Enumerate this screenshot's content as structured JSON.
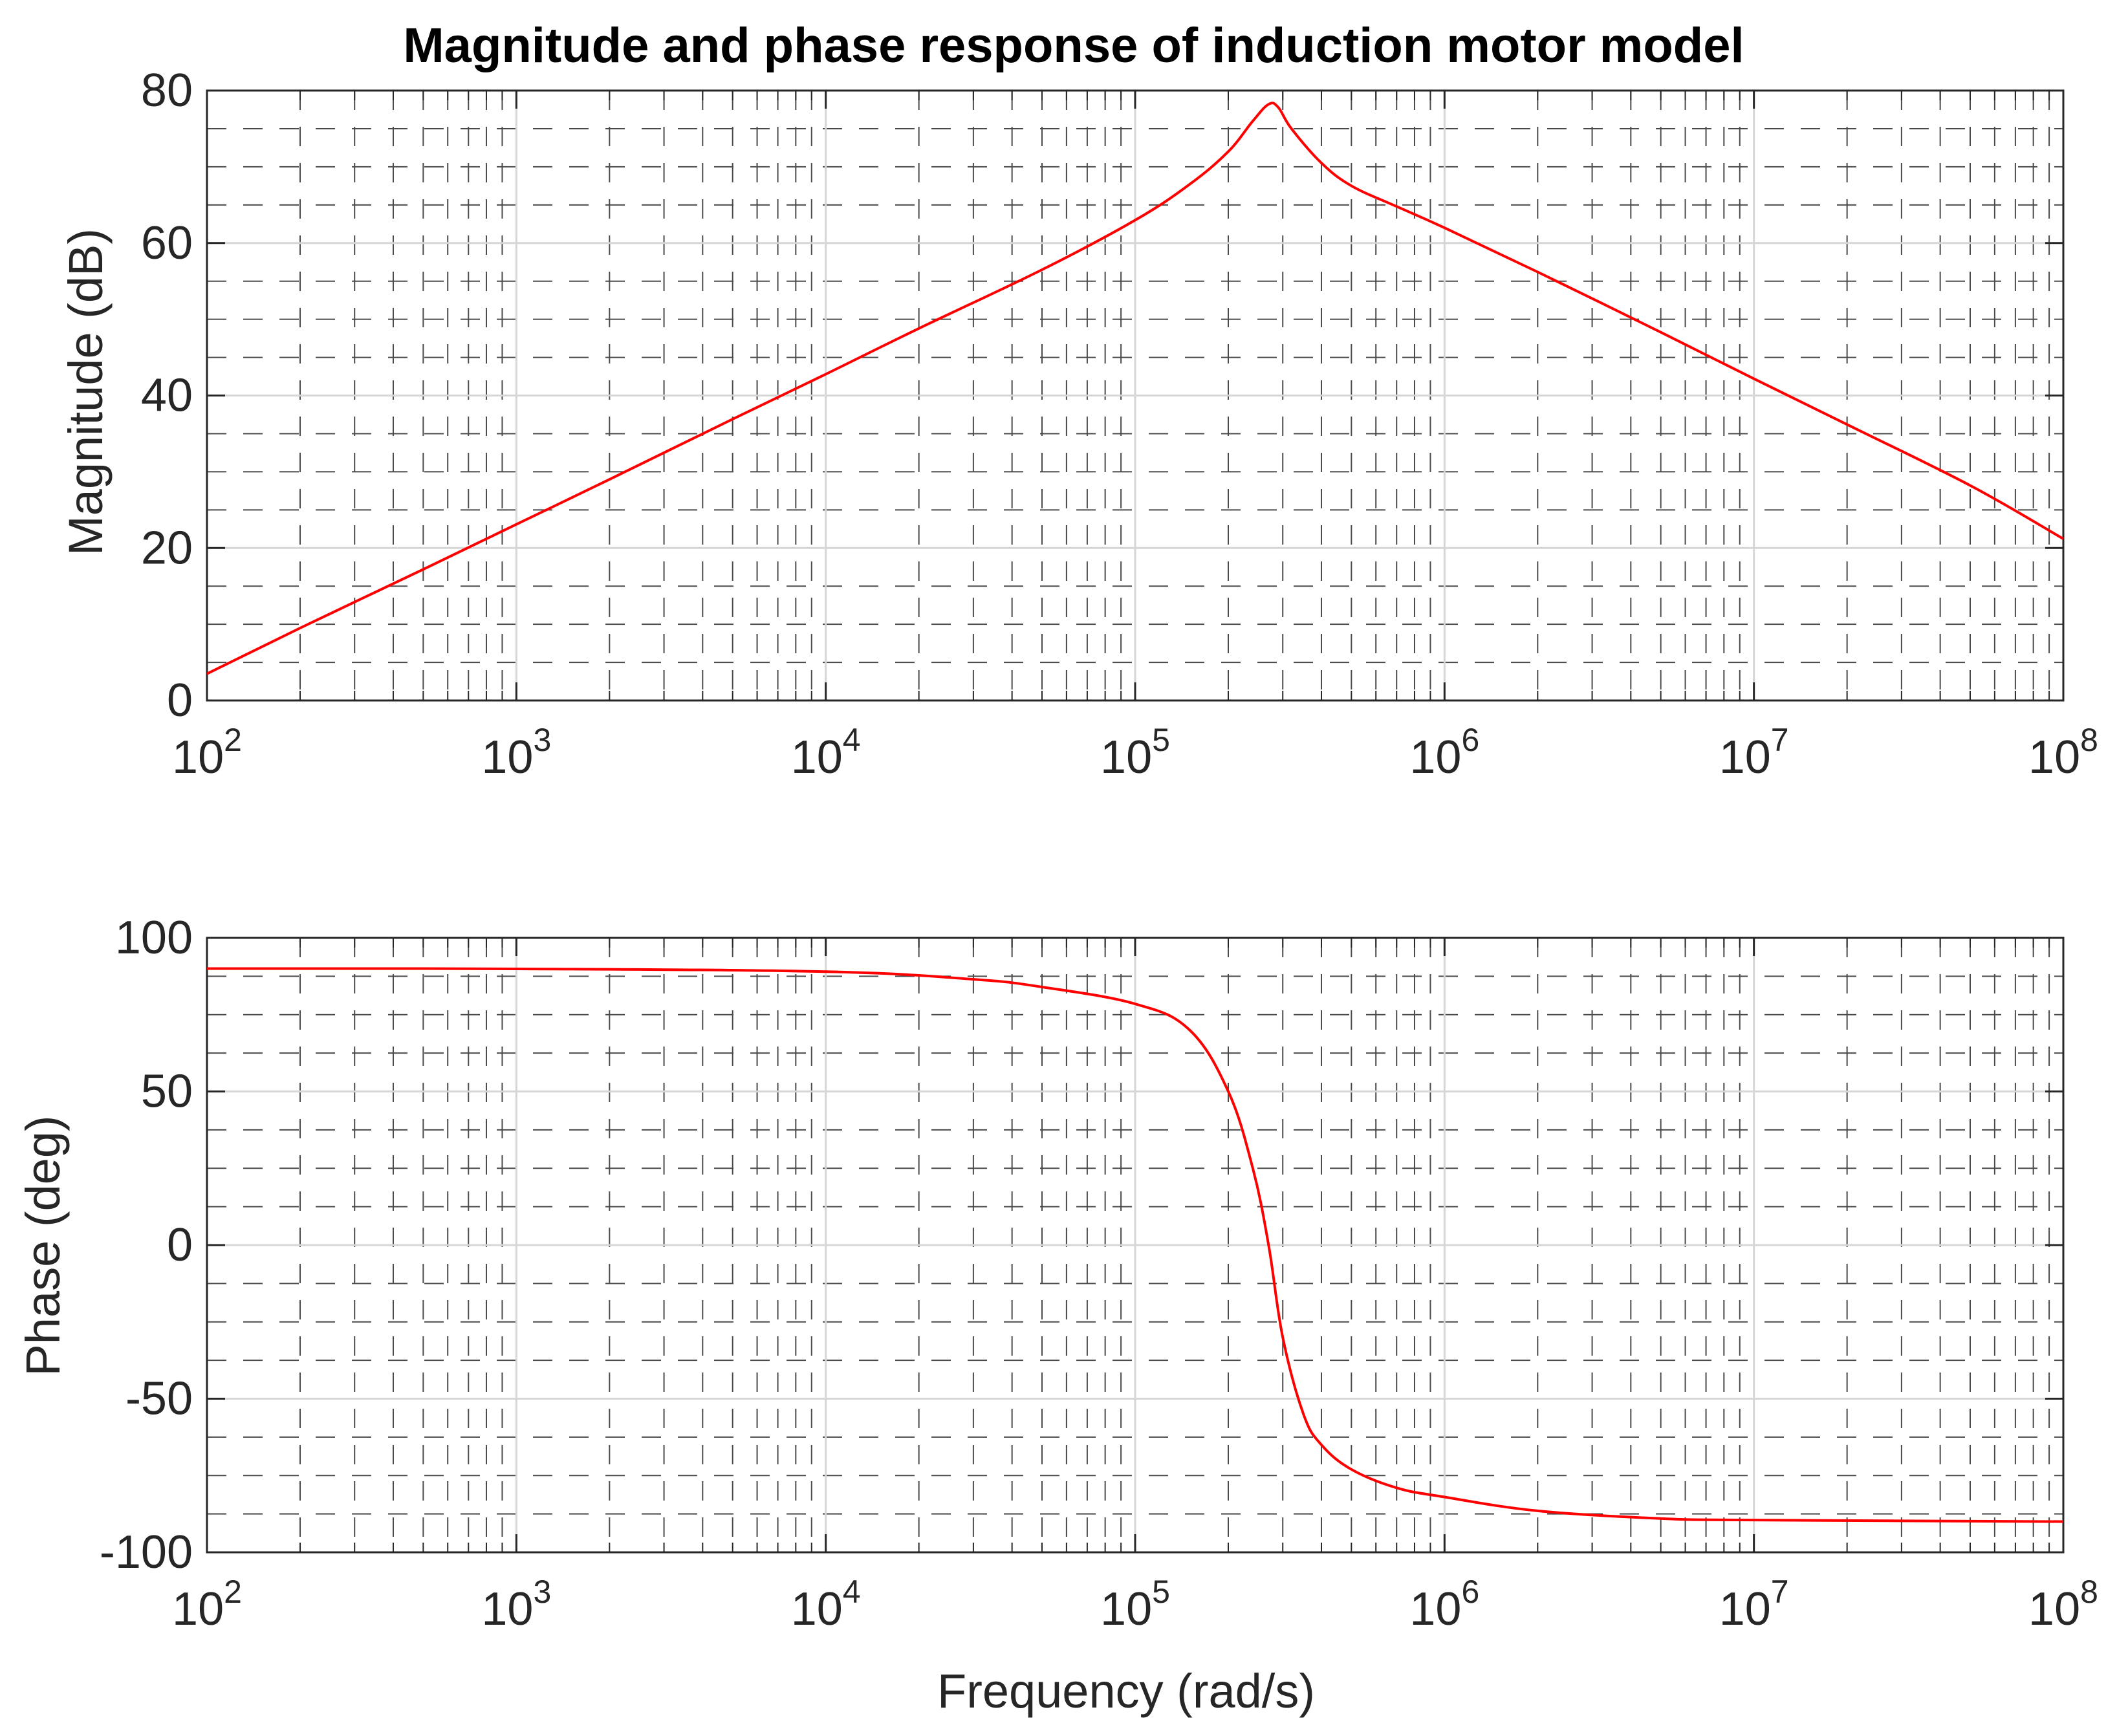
{
  "chart_data": [
    {
      "type": "line",
      "title": "Magnitude and phase response of induction motor model",
      "xlabel": "",
      "ylabel": "Magnitude (dB)",
      "xscale": "log",
      "xlim": [
        100,
        100000000
      ],
      "ylim": [
        0,
        80
      ],
      "x_ticks": [
        {
          "base": "10",
          "exp": "2"
        },
        {
          "base": "10",
          "exp": "3"
        },
        {
          "base": "10",
          "exp": "4"
        },
        {
          "base": "10",
          "exp": "5"
        },
        {
          "base": "10",
          "exp": "6"
        },
        {
          "base": "10",
          "exp": "7"
        },
        {
          "base": "10",
          "exp": "8"
        }
      ],
      "y_ticks": [
        "0",
        "20",
        "40",
        "60",
        "80"
      ],
      "y_tick_values": [
        0,
        20,
        40,
        60,
        80
      ],
      "grid": true,
      "series": [
        {
          "name": "Magnitude",
          "color": "#ff0000",
          "x": [
            100,
            200,
            500,
            1000,
            2000,
            5000,
            10000,
            20000,
            50000,
            100000,
            150000,
            200000,
            240000,
            270000,
            290000,
            320000,
            400000,
            500000,
            700000,
            1000000,
            2000000,
            5000000,
            10000000,
            20000000,
            50000000,
            100000000
          ],
          "y": [
            3.5,
            9.5,
            17.2,
            23.1,
            29.0,
            36.9,
            42.8,
            48.8,
            56.5,
            63.0,
            67.7,
            72.0,
            76.0,
            78.2,
            77.8,
            75.0,
            70.5,
            67.5,
            64.8,
            62.0,
            56.2,
            48.3,
            42.2,
            36.2,
            28.2,
            21.2
          ]
        }
      ]
    },
    {
      "type": "line",
      "title": "",
      "xlabel": "Frequency (rad/s)",
      "ylabel": "Phase (deg)",
      "xscale": "log",
      "xlim": [
        100,
        100000000
      ],
      "ylim": [
        -100,
        100
      ],
      "x_ticks": [
        {
          "base": "10",
          "exp": "2"
        },
        {
          "base": "10",
          "exp": "3"
        },
        {
          "base": "10",
          "exp": "4"
        },
        {
          "base": "10",
          "exp": "5"
        },
        {
          "base": "10",
          "exp": "6"
        },
        {
          "base": "10",
          "exp": "7"
        },
        {
          "base": "10",
          "exp": "8"
        }
      ],
      "y_ticks": [
        "-100",
        "-50",
        "0",
        "50",
        "100"
      ],
      "y_tick_values": [
        -100,
        -50,
        0,
        50,
        100
      ],
      "grid": true,
      "series": [
        {
          "name": "Phase",
          "color": "#ff0000",
          "x": [
            100,
            1000,
            10000,
            30000,
            50000,
            100000,
            150000,
            200000,
            240000,
            270000,
            300000,
            350000,
            400000,
            500000,
            700000,
            1000000,
            2000000,
            5000000,
            10000000,
            100000000
          ],
          "y": [
            90,
            89.9,
            89.0,
            86.5,
            84.0,
            78.5,
            70.0,
            50.0,
            25.0,
            0.0,
            -30.0,
            -55.0,
            -65.0,
            -73.0,
            -79.0,
            -82.0,
            -86.5,
            -89.0,
            -89.5,
            -90.0
          ]
        }
      ]
    }
  ]
}
